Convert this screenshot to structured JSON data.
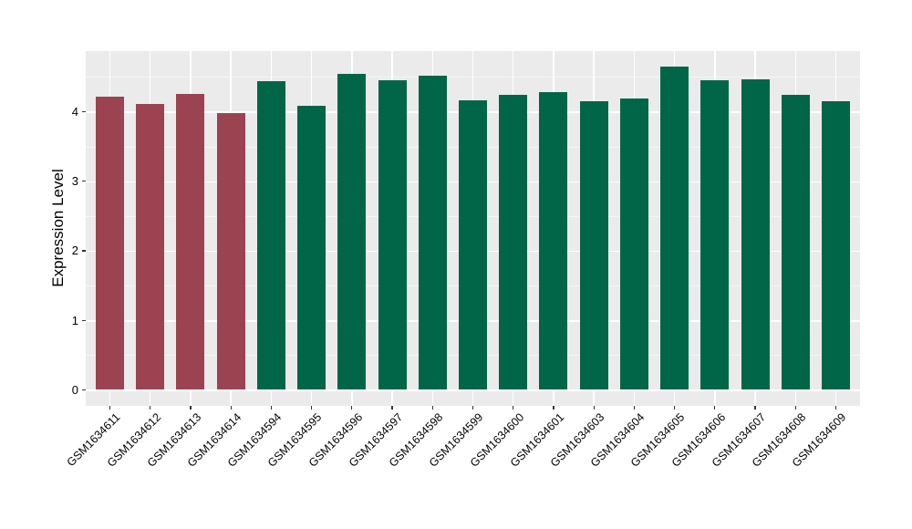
{
  "chart_data": {
    "type": "bar",
    "title": "",
    "xlabel": "",
    "ylabel": "Expression Level",
    "categories": [
      "GSM1634611",
      "GSM1634612",
      "GSM1634613",
      "GSM1634614",
      "GSM1634594",
      "GSM1634595",
      "GSM1634596",
      "GSM1634597",
      "GSM1634598",
      "GSM1634599",
      "GSM1634600",
      "GSM1634601",
      "GSM1634603",
      "GSM1634604",
      "GSM1634605",
      "GSM1634606",
      "GSM1634607",
      "GSM1634608",
      "GSM1634609"
    ],
    "values": [
      4.22,
      4.11,
      4.25,
      3.98,
      4.44,
      4.09,
      4.54,
      4.45,
      4.52,
      4.17,
      4.24,
      4.28,
      4.15,
      4.19,
      4.65,
      4.45,
      4.47,
      4.24,
      4.15
    ],
    "bar_groups": [
      "A",
      "A",
      "A",
      "A",
      "B",
      "B",
      "B",
      "B",
      "B",
      "B",
      "B",
      "B",
      "B",
      "B",
      "B",
      "B",
      "B",
      "B",
      "B"
    ],
    "group_colors": {
      "A": "#9B4351",
      "B": "#006647"
    },
    "yticks": [
      0,
      1,
      2,
      3,
      4
    ],
    "minor_yticks": [
      0.5,
      1.5,
      2.5,
      3.5,
      4.5
    ],
    "ylim": [
      -0.232,
      4.872
    ],
    "grid": "horizontal major+minor, vertical major at category centers",
    "legend": "none",
    "panel_background": "#EBEBEB",
    "gridline_color": "#FFFFFF",
    "tick_color": "#333333"
  }
}
